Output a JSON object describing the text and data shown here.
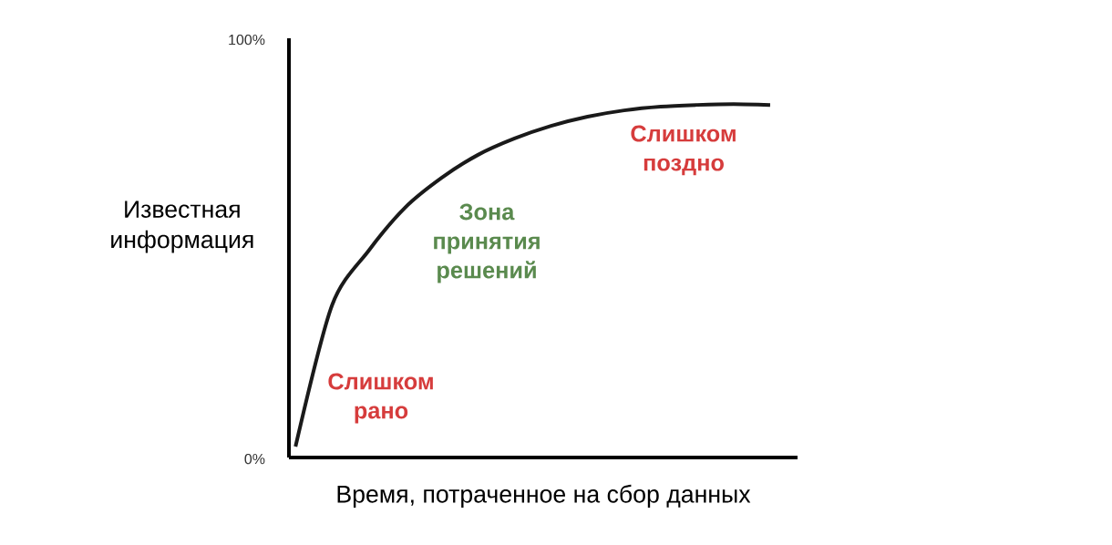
{
  "chart_data": {
    "type": "line",
    "xlabel": "Время, потраченное на сбор данных",
    "ylabel": "Известная информация",
    "categories": [
      null,
      null,
      null,
      null,
      null,
      null,
      null,
      null,
      null,
      null,
      null,
      null,
      null,
      null
    ],
    "values": [
      2.6,
      36.3,
      49.3,
      59.6,
      66.7,
      72.2,
      76.1,
      79.1,
      81.3,
      82.8,
      83.7,
      84.1,
      84.3,
      84.1
    ],
    "color": "#1a1a1a",
    "ylim": [
      0,
      100
    ],
    "yticks": [
      {
        "value": 0,
        "label": "0%"
      },
      {
        "value": 100,
        "label": "100%"
      }
    ],
    "annotations": [
      "Слишком рано",
      "Зона принятия решений",
      "Слишком поздно"
    ]
  }
}
